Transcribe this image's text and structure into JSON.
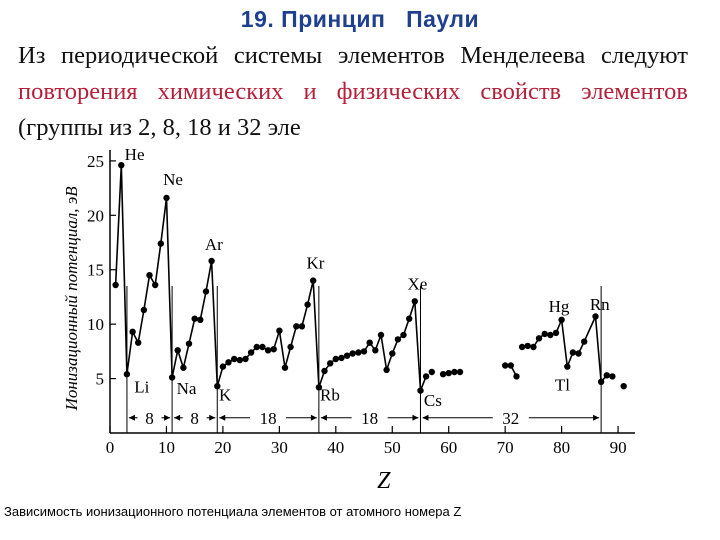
{
  "slide": {
    "title": "19. Принцип   Паули",
    "body_prefix": "Из периодической системы элементов Менделеева следуют ",
    "body_highlight": "повторения химических и физических свойств элементов",
    "body_suffix": " (группы из 2, 8, 18 и 32 эле"
  },
  "caption": "Зависимость ионизационного потенциала элементов от атомного номера Z",
  "colors": {
    "title": "#1f3f8f",
    "highlight": "#b3213a",
    "marks": "#000000"
  },
  "chart_data": {
    "type": "line",
    "xlabel": "Z",
    "ylabel": "Ионизационный потенциал, эВ",
    "xlim": [
      0,
      93
    ],
    "ylim": [
      0,
      26
    ],
    "xticks": [
      0,
      10,
      20,
      30,
      40,
      50,
      60,
      70,
      80,
      90
    ],
    "yticks": [
      5,
      10,
      15,
      20,
      25
    ],
    "segments": [
      [
        [
          1,
          13.6
        ],
        [
          2,
          24.6
        ],
        [
          3,
          5.4
        ],
        [
          4,
          9.3
        ],
        [
          5,
          8.3
        ],
        [
          6,
          11.3
        ],
        [
          7,
          14.5
        ],
        [
          8,
          13.6
        ],
        [
          9,
          17.4
        ],
        [
          10,
          21.6
        ],
        [
          11,
          5.1
        ],
        [
          12,
          7.6
        ],
        [
          13,
          6.0
        ],
        [
          14,
          8.2
        ],
        [
          15,
          10.5
        ],
        [
          16,
          10.4
        ],
        [
          17,
          13.0
        ],
        [
          18,
          15.8
        ],
        [
          19,
          4.3
        ],
        [
          20,
          6.1
        ],
        [
          21,
          6.5
        ],
        [
          22,
          6.8
        ],
        [
          23,
          6.7
        ],
        [
          24,
          6.8
        ],
        [
          25,
          7.4
        ],
        [
          26,
          7.9
        ],
        [
          27,
          7.9
        ],
        [
          28,
          7.6
        ],
        [
          29,
          7.7
        ],
        [
          30,
          9.4
        ],
        [
          31,
          6.0
        ],
        [
          32,
          7.9
        ],
        [
          33,
          9.8
        ],
        [
          34,
          9.8
        ],
        [
          35,
          11.8
        ],
        [
          36,
          14.0
        ],
        [
          37,
          4.2
        ],
        [
          38,
          5.7
        ],
        [
          39,
          6.4
        ],
        [
          40,
          6.8
        ],
        [
          41,
          6.9
        ],
        [
          42,
          7.1
        ],
        [
          43,
          7.3
        ],
        [
          44,
          7.4
        ],
        [
          45,
          7.5
        ],
        [
          46,
          8.3
        ],
        [
          47,
          7.6
        ],
        [
          48,
          9.0
        ],
        [
          49,
          5.8
        ],
        [
          50,
          7.3
        ],
        [
          51,
          8.6
        ],
        [
          52,
          9.0
        ],
        [
          53,
          10.5
        ],
        [
          54,
          12.1
        ],
        [
          55,
          3.9
        ],
        [
          56,
          5.2
        ]
      ],
      [
        [
          57,
          5.6
        ]
      ],
      [
        [
          59,
          5.4
        ],
        [
          60,
          5.5
        ],
        [
          61,
          5.6
        ]
      ],
      [
        [
          62,
          5.6
        ]
      ],
      [
        [
          70,
          6.2
        ],
        [
          71,
          6.2
        ],
        [
          72,
          5.2
        ]
      ],
      [
        [
          73,
          7.9
        ],
        [
          74,
          8.0
        ],
        [
          75,
          7.9
        ],
        [
          76,
          8.7
        ],
        [
          77,
          9.1
        ],
        [
          78,
          9.0
        ],
        [
          79,
          9.2
        ],
        [
          80,
          10.4
        ],
        [
          81,
          6.1
        ],
        [
          82,
          7.4
        ],
        [
          83,
          7.3
        ],
        [
          84,
          8.4
        ],
        [
          86,
          10.7
        ],
        [
          87,
          4.7
        ],
        [
          88,
          5.3
        ],
        [
          89,
          5.2
        ]
      ],
      [
        [
          91,
          4.3
        ]
      ]
    ],
    "element_labels": [
      {
        "text": "He",
        "x": 2.6,
        "y": 25.1
      },
      {
        "text": "Ne",
        "x": 9.4,
        "y": 22.8
      },
      {
        "text": "Ar",
        "x": 16.8,
        "y": 16.8
      },
      {
        "text": "Kr",
        "x": 34.8,
        "y": 15.1
      },
      {
        "text": "Xe",
        "x": 52.7,
        "y": 13.2
      },
      {
        "text": "Hg",
        "x": 77.7,
        "y": 11.1
      },
      {
        "text": "Rn",
        "x": 85.0,
        "y": 11.3
      },
      {
        "text": "Li",
        "x": 4.3,
        "y": 3.7
      },
      {
        "text": "Na",
        "x": 11.8,
        "y": 3.6
      },
      {
        "text": "K",
        "x": 19.3,
        "y": 3.0
      },
      {
        "text": "Rb",
        "x": 37.2,
        "y": 3.0
      },
      {
        "text": "Cs",
        "x": 55.6,
        "y": 2.5
      },
      {
        "text": "Tl",
        "x": 78.8,
        "y": 3.9
      }
    ],
    "period_markers": [
      3,
      11,
      19,
      37,
      55,
      87
    ],
    "period_brackets": [
      {
        "from": 3,
        "to": 11,
        "label": "8"
      },
      {
        "from": 11,
        "to": 19,
        "label": "8"
      },
      {
        "from": 19,
        "to": 37,
        "label": "18"
      },
      {
        "from": 37,
        "to": 55,
        "label": "18"
      },
      {
        "from": 55,
        "to": 87,
        "label": "32"
      }
    ]
  }
}
